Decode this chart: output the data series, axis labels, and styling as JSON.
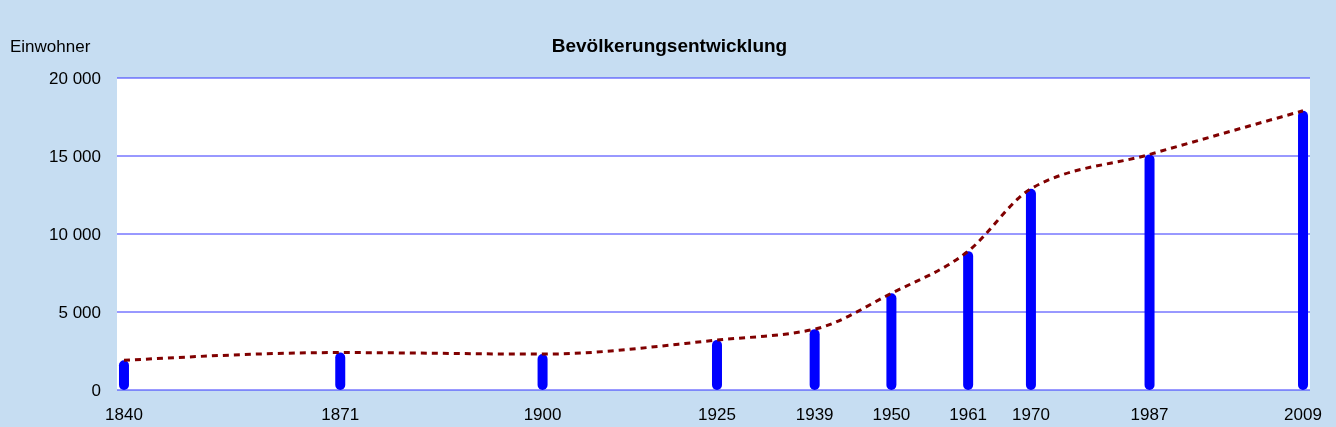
{
  "chart_data": {
    "type": "bar",
    "title": "Bevölkerungsentwicklung",
    "ylabel": "Einwohner",
    "x": [
      1840,
      1871,
      1900,
      1925,
      1939,
      1950,
      1961,
      1970,
      1987,
      2009
    ],
    "series": [
      {
        "color": "#0000ff",
        "values": [
          1900,
          2400,
          2300,
          3200,
          3900,
          6200,
          8900,
          12900,
          15100,
          17900
        ]
      },
      {
        "type": "line",
        "color": "#800000",
        "line_style": "dashed",
        "values": [
          1900,
          2400,
          2300,
          3200,
          3900,
          6200,
          8900,
          12900,
          15100,
          17900
        ]
      }
    ],
    "xlim": [
      1839,
      2010
    ],
    "xticks": [
      1840,
      1871,
      1900,
      1925,
      1939,
      1950,
      1961,
      1970,
      1987,
      2009
    ],
    "ylim": [
      0,
      20000
    ],
    "yticks": [
      {
        "value": 0,
        "label": "0"
      },
      {
        "value": 5000,
        "label": "5 000"
      },
      {
        "value": 10000,
        "label": "10 000"
      },
      {
        "value": 15000,
        "label": "15 000"
      },
      {
        "value": 20000,
        "label": "20 000"
      }
    ],
    "grid": "y"
  }
}
